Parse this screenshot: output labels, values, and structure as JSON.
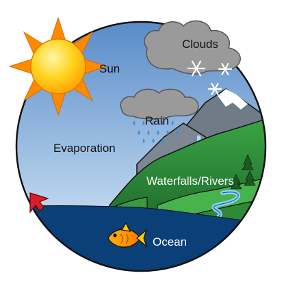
{
  "labels": {
    "sun": "Sun",
    "clouds": "Clouds",
    "rain": "Rain",
    "evaporation": "Evaporation",
    "waterfalls_rivers": "Waterfalls/Rivers",
    "ocean": "Ocean"
  },
  "colors": {
    "sky_top": "#4f86c6",
    "sky_bottom": "#cfe1f2",
    "ocean": "#0a3f78",
    "sun": "#ffd21a",
    "sun_rays": "#ff8a00",
    "cloud": "#9a9a9a",
    "hill": "#2e8b3a",
    "arrow": "#d81e2a",
    "fish": "#ff9f1c"
  },
  "icons": [
    "sun-icon",
    "cloud-icon",
    "snowflake-icon",
    "raindrop-icon",
    "mountain-icon",
    "tree-icon",
    "fish-icon",
    "arrow-icon"
  ]
}
